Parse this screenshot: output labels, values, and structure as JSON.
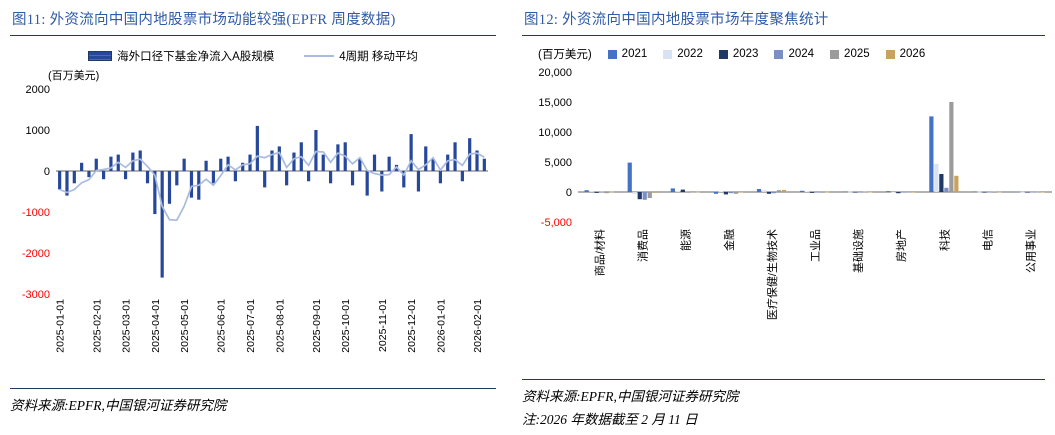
{
  "colors": {
    "title_blue": "#2F5BA8",
    "rule_navy": "#1F3864",
    "negative_tick_red": "#FF0000",
    "axis_line": "#666666"
  },
  "panels": {
    "left": {
      "source": "资料来源:EPFR,中国银河证券研究院"
    },
    "right": {
      "source": "资料来源:EPFR,中国银河证券研究院",
      "note": "注:2026 年数据截至 2 月 11 日"
    }
  },
  "chart_data": [
    {
      "type": "bar",
      "title": "图11: 外资流向中国内地股票市场动能较强(EPFR 周度数据)",
      "unit": "(百万美元)",
      "ylim": [
        -3000,
        2000
      ],
      "ytick_values": [
        2000,
        1000,
        0,
        -1000,
        -2000,
        -3000
      ],
      "ytick_labels": [
        "2000",
        "1000",
        "0",
        "-1000",
        "-2000",
        "-3000"
      ],
      "x_ticks": [
        {
          "i": 0,
          "label": "2025-01-01"
        },
        {
          "i": 5,
          "label": "2025-02-01"
        },
        {
          "i": 9,
          "label": "2025-03-01"
        },
        {
          "i": 13,
          "label": "2025-04-01"
        },
        {
          "i": 17,
          "label": "2025-05-01"
        },
        {
          "i": 22,
          "label": "2025-06-01"
        },
        {
          "i": 26,
          "label": "2025-07-01"
        },
        {
          "i": 30,
          "label": "2025-08-01"
        },
        {
          "i": 35,
          "label": "2025-09-01"
        },
        {
          "i": 39,
          "label": "2025-10-01"
        },
        {
          "i": 44,
          "label": "2025-11-01"
        },
        {
          "i": 48,
          "label": "2025-12-01"
        },
        {
          "i": 52,
          "label": "2026-01-01"
        },
        {
          "i": 57,
          "label": "2026-02-01"
        }
      ],
      "series": [
        {
          "name": "海外口径下基金净流入A股规模",
          "type": "bar",
          "color": "#27479A",
          "values": [
            -450,
            -600,
            -300,
            200,
            -150,
            300,
            -200,
            350,
            400,
            -200,
            450,
            500,
            -300,
            -1050,
            -2600,
            -800,
            -350,
            300,
            -650,
            -700,
            250,
            -300,
            300,
            350,
            -250,
            200,
            400,
            1100,
            -400,
            500,
            600,
            -350,
            450,
            700,
            -250,
            1000,
            400,
            -300,
            650,
            700,
            -350,
            300,
            -600,
            400,
            -500,
            350,
            150,
            -400,
            900,
            -500,
            600,
            300,
            -300,
            400,
            700,
            -250,
            800,
            500,
            300
          ]
        },
        {
          "name": "4周期 移动平均",
          "type": "line",
          "color": "#A9BCDE",
          "derived": "trailing 4-week moving average of bar series"
        }
      ]
    },
    {
      "type": "bar",
      "title": "图12: 外资流向中国内地股票市场年度聚焦统计",
      "unit": "(百万美元)",
      "ylim": [
        -5000,
        20000
      ],
      "ytick_values": [
        20000,
        15000,
        10000,
        5000,
        0,
        -5000
      ],
      "ytick_labels": [
        "20,000",
        "15,000",
        "10,000",
        "5,000",
        "0",
        "-5,000"
      ],
      "categories": [
        "商品/材料",
        "消费品",
        "能源",
        "金融",
        "医疗保健/生物技术",
        "工业品",
        "基础设施",
        "房地产",
        "科技",
        "电信",
        "公用事业"
      ],
      "series": [
        {
          "name": "2021",
          "color": "#4472C4",
          "values": [
            300,
            4900,
            600,
            -300,
            500,
            200,
            100,
            150,
            12600,
            100,
            50
          ]
        },
        {
          "name": "2022",
          "color": "#D9E2F2",
          "values": [
            150,
            -300,
            150,
            100,
            300,
            100,
            50,
            -100,
            4700,
            50,
            30
          ]
        },
        {
          "name": "2023",
          "color": "#1F3864",
          "values": [
            -150,
            -1200,
            400,
            -400,
            -300,
            -150,
            -100,
            -200,
            3000,
            -50,
            -40
          ]
        },
        {
          "name": "2024",
          "color": "#7B8EC8",
          "values": [
            80,
            -1300,
            100,
            -200,
            -200,
            -100,
            -60,
            -100,
            700,
            40,
            20
          ]
        },
        {
          "name": "2025",
          "color": "#9B9B9B",
          "values": [
            -200,
            -1000,
            -100,
            -300,
            300,
            120,
            60,
            -60,
            15000,
            100,
            40
          ]
        },
        {
          "name": "2026",
          "color": "#C9A25E",
          "values": [
            50,
            -150,
            30,
            -60,
            350,
            40,
            20,
            -30,
            2700,
            30,
            10
          ]
        }
      ]
    }
  ]
}
